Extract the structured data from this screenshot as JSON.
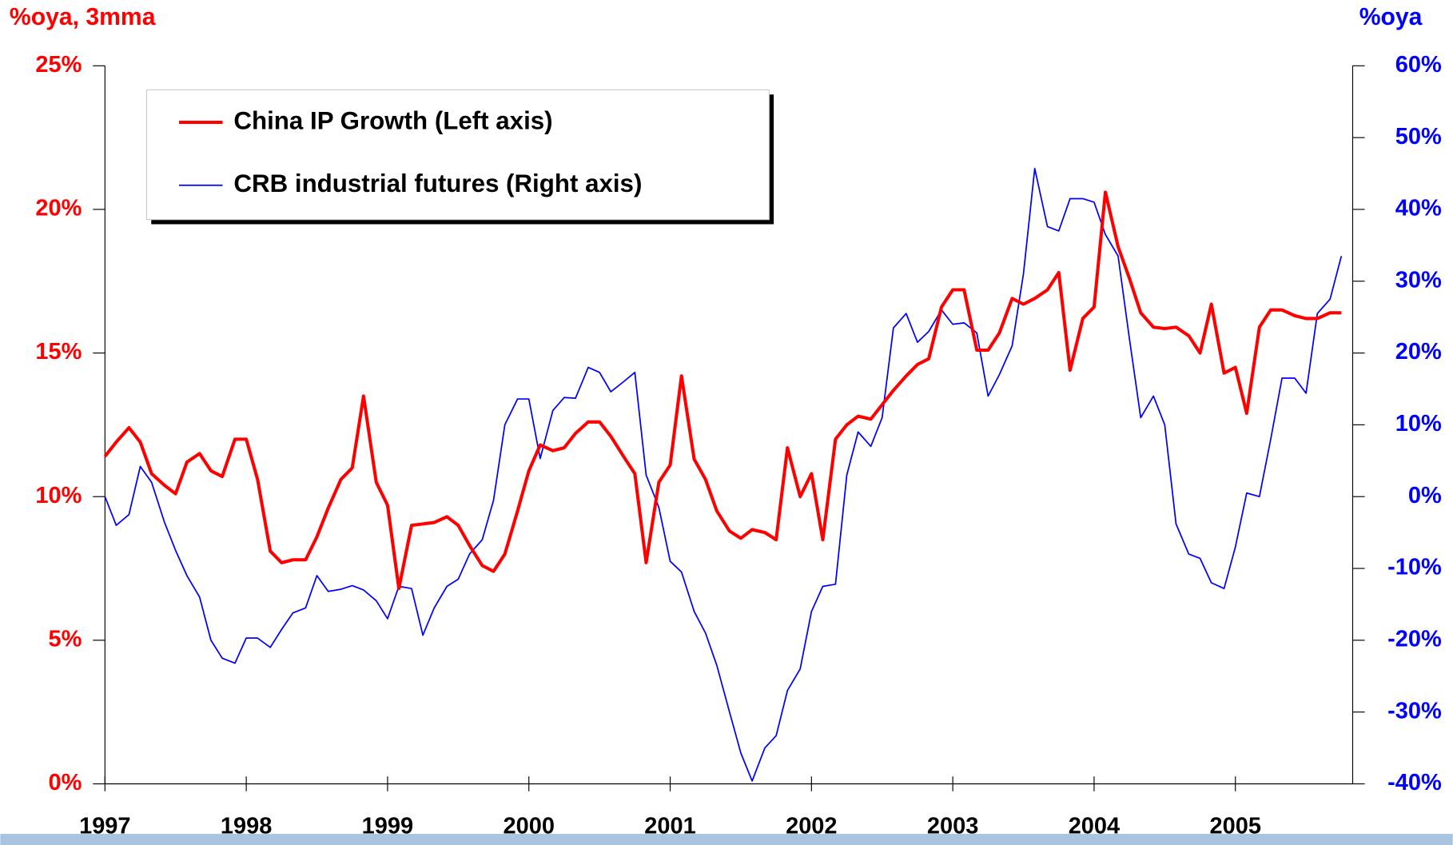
{
  "chart_data": {
    "type": "line",
    "y_label": "%oya, 3mma",
    "y2_label": "%oya",
    "x": [
      1997,
      1997.08,
      1997.17,
      1997.25,
      1997.33,
      1997.42,
      1997.5,
      1997.58,
      1997.67,
      1997.75,
      1997.83,
      1997.92,
      1998,
      1998.08,
      1998.17,
      1998.25,
      1998.33,
      1998.42,
      1998.5,
      1998.58,
      1998.67,
      1998.75,
      1998.83,
      1998.92,
      1999,
      1999.08,
      1999.17,
      1999.25,
      1999.33,
      1999.42,
      1999.5,
      1999.58,
      1999.67,
      1999.75,
      1999.83,
      1999.92,
      2000,
      2000.08,
      2000.17,
      2000.25,
      2000.33,
      2000.42,
      2000.5,
      2000.58,
      2000.67,
      2000.75,
      2000.83,
      2000.92,
      2001,
      2001.08,
      2001.17,
      2001.25,
      2001.33,
      2001.42,
      2001.5,
      2001.58,
      2001.67,
      2001.75,
      2001.83,
      2001.92,
      2002,
      2002.08,
      2002.17,
      2002.25,
      2002.33,
      2002.42,
      2002.5,
      2002.58,
      2002.67,
      2002.75,
      2002.83,
      2002.92,
      2003,
      2003.08,
      2003.17,
      2003.25,
      2003.33,
      2003.42,
      2003.5,
      2003.58,
      2003.67,
      2003.75,
      2003.83,
      2003.92,
      2004,
      2004.08,
      2004.17,
      2004.25,
      2004.33,
      2004.42,
      2004.5,
      2004.58,
      2004.67,
      2004.75,
      2004.83,
      2004.92,
      2005,
      2005.08,
      2005.17,
      2005.25,
      2005.33,
      2005.42,
      2005.5,
      2005.58,
      2005.67,
      2005.75
    ],
    "series": [
      {
        "name": "China IP Growth (Left axis)",
        "color": "#ff0000",
        "axis": "y",
        "values": [
          11.4,
          11.9,
          12.4,
          11.9,
          10.8,
          10.4,
          10.1,
          11.2,
          11.5,
          10.9,
          10.7,
          12.0,
          12.0,
          10.6,
          8.1,
          7.7,
          7.8,
          7.8,
          8.6,
          9.6,
          10.6,
          11.0,
          13.5,
          10.5,
          9.7,
          6.8,
          9.0,
          9.05,
          9.1,
          9.3,
          9.0,
          8.3,
          7.6,
          7.4,
          8.0,
          9.5,
          10.9,
          11.8,
          11.6,
          11.7,
          12.2,
          12.6,
          12.6,
          12.1,
          11.4,
          10.8,
          7.7,
          10.5,
          11.1,
          14.2,
          11.3,
          10.6,
          9.5,
          8.8,
          8.55,
          8.85,
          8.75,
          8.5,
          11.7,
          10.0,
          10.8,
          8.5,
          12.0,
          12.5,
          12.8,
          12.7,
          13.2,
          13.7,
          14.2,
          14.6,
          14.8,
          16.6,
          17.2,
          17.2,
          15.1,
          15.1,
          15.7,
          16.9,
          16.7,
          16.9,
          17.2,
          17.8,
          14.4,
          16.2,
          16.6,
          20.6,
          18.7,
          17.6,
          16.4,
          15.9,
          15.85,
          15.9,
          15.6,
          15.0,
          16.7,
          14.3,
          14.5,
          12.9,
          15.9,
          16.5,
          16.5,
          16.3,
          16.2,
          16.2,
          16.4,
          16.4
        ]
      },
      {
        "name": "CRB industrial futures (Right axis)",
        "color": "#0000ff",
        "axis": "y2",
        "values": [
          0,
          -4,
          -2.5,
          4.2,
          2,
          -3.5,
          -7.5,
          -11,
          -14,
          -20,
          -22.5,
          -23.2,
          -19.7,
          -19.7,
          -21,
          -18.5,
          -16.2,
          -15.5,
          -11,
          -13.2,
          -12.9,
          -12.4,
          -13,
          -14.5,
          -17,
          -12.5,
          -12.8,
          -19.3,
          -15.5,
          -12.5,
          -11.5,
          -8,
          -6,
          -0.5,
          10,
          13.6,
          13.6,
          5.3,
          12,
          13.8,
          13.7,
          18,
          17.3,
          14.6,
          16,
          17.3,
          3,
          -1.5,
          -9,
          -10.5,
          -16,
          -19,
          -23.5,
          -30,
          -35.7,
          -39.6,
          -35,
          -33.3,
          -27,
          -24,
          -16,
          -12.5,
          -12.2,
          3,
          9,
          7,
          11,
          23.5,
          25.5,
          21.5,
          23,
          26,
          24,
          24.2,
          22.8,
          14,
          17,
          21,
          31,
          45.7,
          37.6,
          37,
          41.5,
          41.5,
          41,
          36.5,
          33.5,
          22,
          11,
          14,
          10,
          -3.8,
          -8,
          -8.6,
          -12,
          -12.8,
          -7,
          0.5,
          0,
          8,
          16.5,
          16.5,
          14.4,
          25.5,
          27.5,
          33.5
        ]
      }
    ],
    "xlim": [
      1997,
      2005.83
    ],
    "xticks": [
      1997,
      1998,
      1999,
      2000,
      2001,
      2002,
      2003,
      2004,
      2005
    ],
    "ylim": [
      0,
      25
    ],
    "yticks": [
      {
        "value": 0,
        "label": "0%"
      },
      {
        "value": 5,
        "label": "5%"
      },
      {
        "value": 10,
        "label": "10%"
      },
      {
        "value": 15,
        "label": "15%"
      },
      {
        "value": 20,
        "label": "20%"
      },
      {
        "value": 25,
        "label": "25%"
      }
    ],
    "y2lim": [
      -40,
      60
    ],
    "y2ticks": [
      {
        "value": -40,
        "label": "-40%"
      },
      {
        "value": -30,
        "label": "-30%"
      },
      {
        "value": -20,
        "label": "-20%"
      },
      {
        "value": -10,
        "label": "-10%"
      },
      {
        "value": 0,
        "label": "0%"
      },
      {
        "value": 10,
        "label": "10%"
      },
      {
        "value": 20,
        "label": "20%"
      },
      {
        "value": 30,
        "label": "30%"
      },
      {
        "value": 40,
        "label": "40%"
      },
      {
        "value": 50,
        "label": "50%"
      },
      {
        "value": 60,
        "label": "60%"
      }
    ],
    "y_color": "#ff0000",
    "y2_color": "#0000ff",
    "legend": "upper left"
  }
}
